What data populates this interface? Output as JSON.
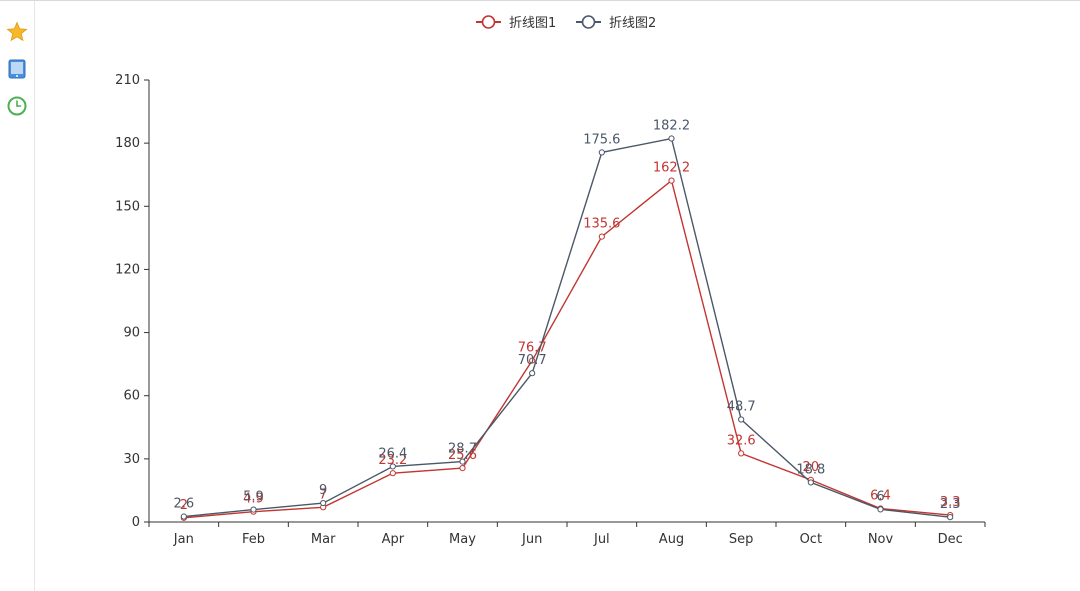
{
  "sidebar": {
    "icons": [
      {
        "name": "star-icon",
        "color": "#f6b82a"
      },
      {
        "name": "tablet-icon",
        "color": "#4a8fdc"
      },
      {
        "name": "clock-icon",
        "color": "#4caf50"
      }
    ]
  },
  "chart_data": {
    "type": "line",
    "title": "",
    "xlabel": "",
    "ylabel": "",
    "categories": [
      "Jan",
      "Feb",
      "Mar",
      "Apr",
      "May",
      "Jun",
      "Jul",
      "Aug",
      "Sep",
      "Oct",
      "Nov",
      "Dec"
    ],
    "ylim": [
      0,
      210
    ],
    "yticks": [
      "0",
      "30",
      "60",
      "90",
      "120",
      "150",
      "180",
      "210"
    ],
    "grid": false,
    "legend_position": "top-center",
    "series": [
      {
        "name": "折线图1",
        "color": "#c23531",
        "values": [
          2,
          4.9,
          7,
          23.2,
          25.6,
          76.7,
          135.6,
          162.2,
          32.6,
          20,
          6.4,
          3.3
        ]
      },
      {
        "name": "折线图2",
        "color": "#4a5868",
        "values": [
          2.6,
          5.9,
          9,
          26.4,
          28.7,
          70.7,
          175.6,
          182.2,
          48.7,
          18.8,
          6,
          2.3
        ]
      }
    ]
  }
}
